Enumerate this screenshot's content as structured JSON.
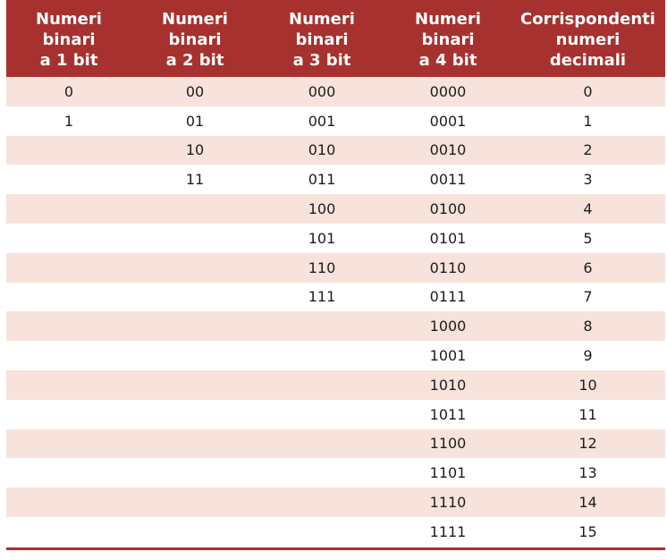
{
  "table": {
    "headers": [
      "Numeri\nbinari\na 1 bit",
      "Numeri\nbinari\na 2 bit",
      "Numeri\nbinari\na 3 bit",
      "Numeri\nbinari\na 4 bit",
      "Corrispondenti\nnumeri\ndecimali"
    ],
    "rows": [
      [
        "0",
        "00",
        "000",
        "0000",
        "0"
      ],
      [
        "1",
        "01",
        "001",
        "0001",
        "1"
      ],
      [
        "",
        "10",
        "010",
        "0010",
        "2"
      ],
      [
        "",
        "11",
        "011",
        "0011",
        "3"
      ],
      [
        "",
        "",
        "100",
        "0100",
        "4"
      ],
      [
        "",
        "",
        "101",
        "0101",
        "5"
      ],
      [
        "",
        "",
        "110",
        "0110",
        "6"
      ],
      [
        "",
        "",
        "111",
        "0111",
        "7"
      ],
      [
        "",
        "",
        "",
        "1000",
        "8"
      ],
      [
        "",
        "",
        "",
        "1001",
        "9"
      ],
      [
        "",
        "",
        "",
        "1010",
        "10"
      ],
      [
        "",
        "",
        "",
        "1011",
        "11"
      ],
      [
        "",
        "",
        "",
        "1100",
        "12"
      ],
      [
        "",
        "",
        "",
        "1101",
        "13"
      ],
      [
        "",
        "",
        "",
        "1110",
        "14"
      ],
      [
        "",
        "",
        "",
        "1111",
        "15"
      ]
    ]
  },
  "colors": {
    "header_background": "#a7312f",
    "header_text": "#ffffff",
    "shaded_row": "#f7e3dc",
    "bottom_rule": "#a7312f"
  }
}
